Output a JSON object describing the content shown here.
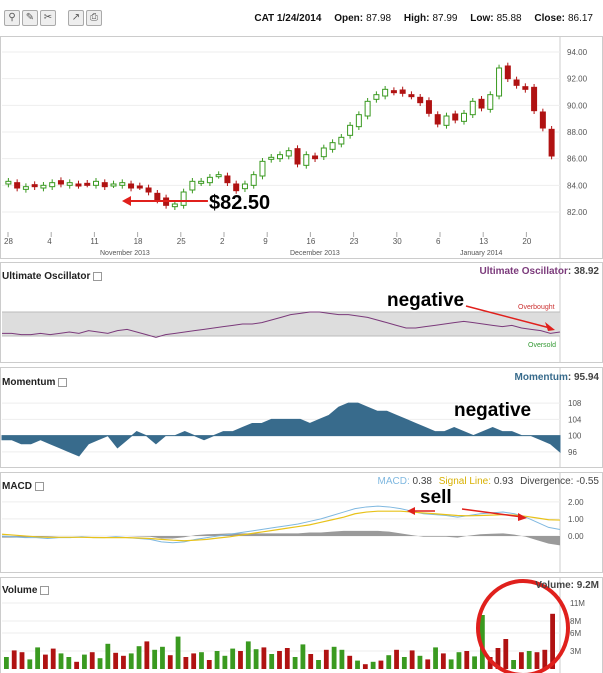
{
  "toolbar": {
    "icons": [
      "zoom-icon",
      "edit-icon",
      "tools-icon",
      "compare-icon",
      "print-icon"
    ],
    "glyphs": [
      "🔍",
      "✎",
      "✂",
      "↗",
      "🖶"
    ]
  },
  "quote": {
    "symbol_date": "CAT 1/24/2014",
    "open_label": "Open:",
    "open": "87.98",
    "high_label": "High:",
    "high": "87.99",
    "low_label": "Low:",
    "low": "85.88",
    "close_label": "Close:",
    "close": "86.17"
  },
  "colors": {
    "up": "#3a9a20",
    "down": "#b01212",
    "osc": "#7b3a7b",
    "mom": "#386b8c",
    "macd": "#7fb8e0",
    "signal": "#e8c21a",
    "hist": "#9a9a9a",
    "annot": "#e0201c"
  },
  "chart_data": [
    {
      "type": "candlestick",
      "yticks": [
        82,
        84,
        86,
        88,
        90,
        92,
        94
      ],
      "ylim": [
        80.5,
        94.6
      ],
      "xticks": [
        "28",
        "4",
        "11",
        "18",
        "25",
        "2",
        "9",
        "16",
        "23",
        "30",
        "6",
        "13",
        "20"
      ],
      "month_labels": [
        "November 2013",
        "December 2013",
        "January 2014"
      ],
      "close": [
        84.3,
        83.8,
        83.9,
        83.9,
        84.0,
        84.2,
        84.1,
        84.2,
        84.0,
        84.1,
        84.3,
        83.9,
        84.1,
        84.2,
        83.8,
        83.9,
        83.5,
        82.9,
        82.5,
        82.6,
        83.5,
        84.3,
        84.3,
        84.6,
        84.8,
        84.2,
        83.6,
        84.1,
        84.8,
        85.8,
        86.1,
        86.3,
        86.6,
        85.6,
        86.3,
        86.0,
        86.8,
        87.2,
        87.6,
        88.5,
        89.3,
        90.3,
        90.8,
        91.2,
        91.0,
        90.9,
        90.7,
        90.2,
        89.4,
        88.6,
        89.2,
        88.9,
        89.4,
        90.3,
        89.8,
        90.8,
        92.8,
        92.0,
        91.5,
        91.2,
        89.6,
        88.3,
        86.2
      ],
      "ohlc_note": "",
      "annotations": {
        "price_label": "$82.50"
      }
    },
    {
      "type": "line",
      "name": "Ultimate Oscillator",
      "value": "38.92",
      "values": [
        38,
        38,
        37,
        37,
        38,
        37,
        38,
        39,
        38,
        40,
        39,
        38,
        40,
        41,
        39,
        37,
        35,
        37,
        38,
        39,
        40,
        41,
        42,
        43,
        44,
        45,
        45,
        46,
        48,
        50,
        52,
        53,
        54,
        54,
        53,
        52,
        52,
        51,
        50,
        48,
        46,
        44,
        42,
        42,
        43,
        44,
        45,
        46,
        47,
        46,
        45,
        44,
        43,
        44,
        42,
        41,
        40,
        38,
        39
      ],
      "labels": {
        "overbought": "Overbought",
        "oversold": "Oversold"
      },
      "annotation": "negative"
    },
    {
      "type": "area",
      "name": "Momentum",
      "value": "95.94",
      "yticks": [
        "108",
        "104",
        "100",
        "96"
      ],
      "ylim": [
        94,
        110
      ],
      "values": [
        99,
        99,
        98,
        98,
        99,
        98,
        97,
        96,
        95,
        98,
        99,
        100,
        97,
        99,
        101,
        100,
        98,
        100,
        100,
        101,
        100,
        99,
        100,
        101,
        101,
        102,
        103,
        103,
        104,
        104,
        104,
        104,
        103,
        104,
        105,
        107,
        108,
        108,
        107,
        106,
        106,
        105,
        104,
        103,
        102,
        101,
        101,
        102,
        101,
        100,
        101,
        102,
        101,
        101,
        100,
        100,
        99,
        98,
        96
      ],
      "annotation": "negative"
    },
    {
      "type": "line",
      "name": "MACD",
      "legend": {
        "macd_label": "MACD:",
        "macd": "0.38",
        "signal_label": "Signal Line:",
        "signal": "0.93",
        "div_label": "Divergence:",
        "div": "-0.55"
      },
      "yticks": [
        "2.00",
        "1.00",
        "0.00"
      ],
      "ylim": [
        -1.0,
        2.4
      ],
      "macd": [
        0.0,
        -0.05,
        -0.1,
        -0.1,
        -0.15,
        -0.1,
        -0.1,
        -0.05,
        -0.1,
        -0.1,
        -0.05,
        -0.1,
        -0.15,
        -0.2,
        -0.35,
        -0.4,
        -0.35,
        -0.2,
        -0.1,
        0.0,
        0.1,
        0.2,
        0.3,
        0.4,
        0.5,
        0.6,
        0.7,
        0.85,
        1.0,
        1.2,
        1.4,
        1.6,
        1.7,
        1.75,
        1.7,
        1.6,
        1.45,
        1.3,
        1.25,
        1.2,
        1.1,
        1.2,
        1.3,
        1.35,
        1.4,
        1.3,
        1.1,
        0.8,
        0.5,
        0.38
      ],
      "signal": [
        0.1,
        0.05,
        0.0,
        -0.05,
        -0.08,
        -0.08,
        -0.08,
        -0.08,
        -0.09,
        -0.1,
        -0.1,
        -0.1,
        -0.12,
        -0.15,
        -0.2,
        -0.25,
        -0.28,
        -0.25,
        -0.2,
        -0.12,
        -0.05,
        0.05,
        0.15,
        0.25,
        0.35,
        0.45,
        0.55,
        0.65,
        0.8,
        0.95,
        1.1,
        1.3,
        1.4,
        1.45,
        1.45,
        1.45,
        1.4,
        1.35,
        1.3,
        1.25,
        1.2,
        1.18,
        1.2,
        1.22,
        1.25,
        1.22,
        1.15,
        1.05,
        0.95,
        0.93
      ],
      "hist": [
        -0.1,
        -0.1,
        -0.1,
        -0.05,
        -0.05,
        0.0,
        0.0,
        0.0,
        0.0,
        0.0,
        0.0,
        0.0,
        -0.03,
        -0.05,
        -0.15,
        -0.15,
        -0.08,
        0.05,
        0.1,
        0.12,
        0.15,
        0.15,
        0.15,
        0.15,
        0.15,
        0.15,
        0.15,
        0.2,
        0.2,
        0.25,
        0.3,
        0.3,
        0.3,
        0.3,
        0.25,
        0.15,
        0.05,
        -0.05,
        -0.05,
        -0.05,
        -0.1,
        0.02,
        0.1,
        0.13,
        0.15,
        0.08,
        -0.05,
        -0.25,
        -0.45,
        -0.55
      ],
      "annotation": "sell"
    },
    {
      "type": "bar",
      "name": "Volume",
      "value": "9.2M",
      "yticks": [
        "11M",
        "8M",
        "6M",
        "3M"
      ],
      "ylim": [
        0,
        11.5
      ],
      "values": [
        2.0,
        3.1,
        2.8,
        1.6,
        3.6,
        2.4,
        3.4,
        2.6,
        2.0,
        1.2,
        2.4,
        2.8,
        1.8,
        4.2,
        2.7,
        2.2,
        2.6,
        3.8,
        4.6,
        3.2,
        3.7,
        2.3,
        5.4,
        2.0,
        2.6,
        2.8,
        1.5,
        3.0,
        2.2,
        3.4,
        3.0,
        4.6,
        3.3,
        3.6,
        2.5,
        3.0,
        3.5,
        2.0,
        4.1,
        2.5,
        1.5,
        3.2,
        3.7,
        3.2,
        2.2,
        1.4,
        0.8,
        1.2,
        1.4,
        2.3,
        3.2,
        2.0,
        3.1,
        2.2,
        1.6,
        3.6,
        2.6,
        1.6,
        2.8,
        3.0,
        2.1,
        9.0,
        2.0,
        3.5,
        5.0,
        1.5,
        2.8,
        3.0,
        2.8,
        3.2,
        9.2
      ],
      "up": [
        1,
        0,
        0,
        1,
        1,
        0,
        0,
        1,
        1,
        0,
        1,
        0,
        1,
        1,
        0,
        0,
        1,
        1,
        0,
        1,
        1,
        0,
        1,
        0,
        0,
        1,
        0,
        1,
        1,
        1,
        0,
        1,
        1,
        0,
        1,
        0,
        0,
        1,
        1,
        0,
        1,
        0,
        1,
        1,
        0,
        1,
        0,
        1,
        0,
        1,
        0,
        1,
        0,
        1,
        0,
        1,
        0,
        1,
        1,
        0,
        1,
        1,
        0,
        0,
        0,
        1,
        0,
        1,
        0,
        0,
        0
      ]
    }
  ]
}
